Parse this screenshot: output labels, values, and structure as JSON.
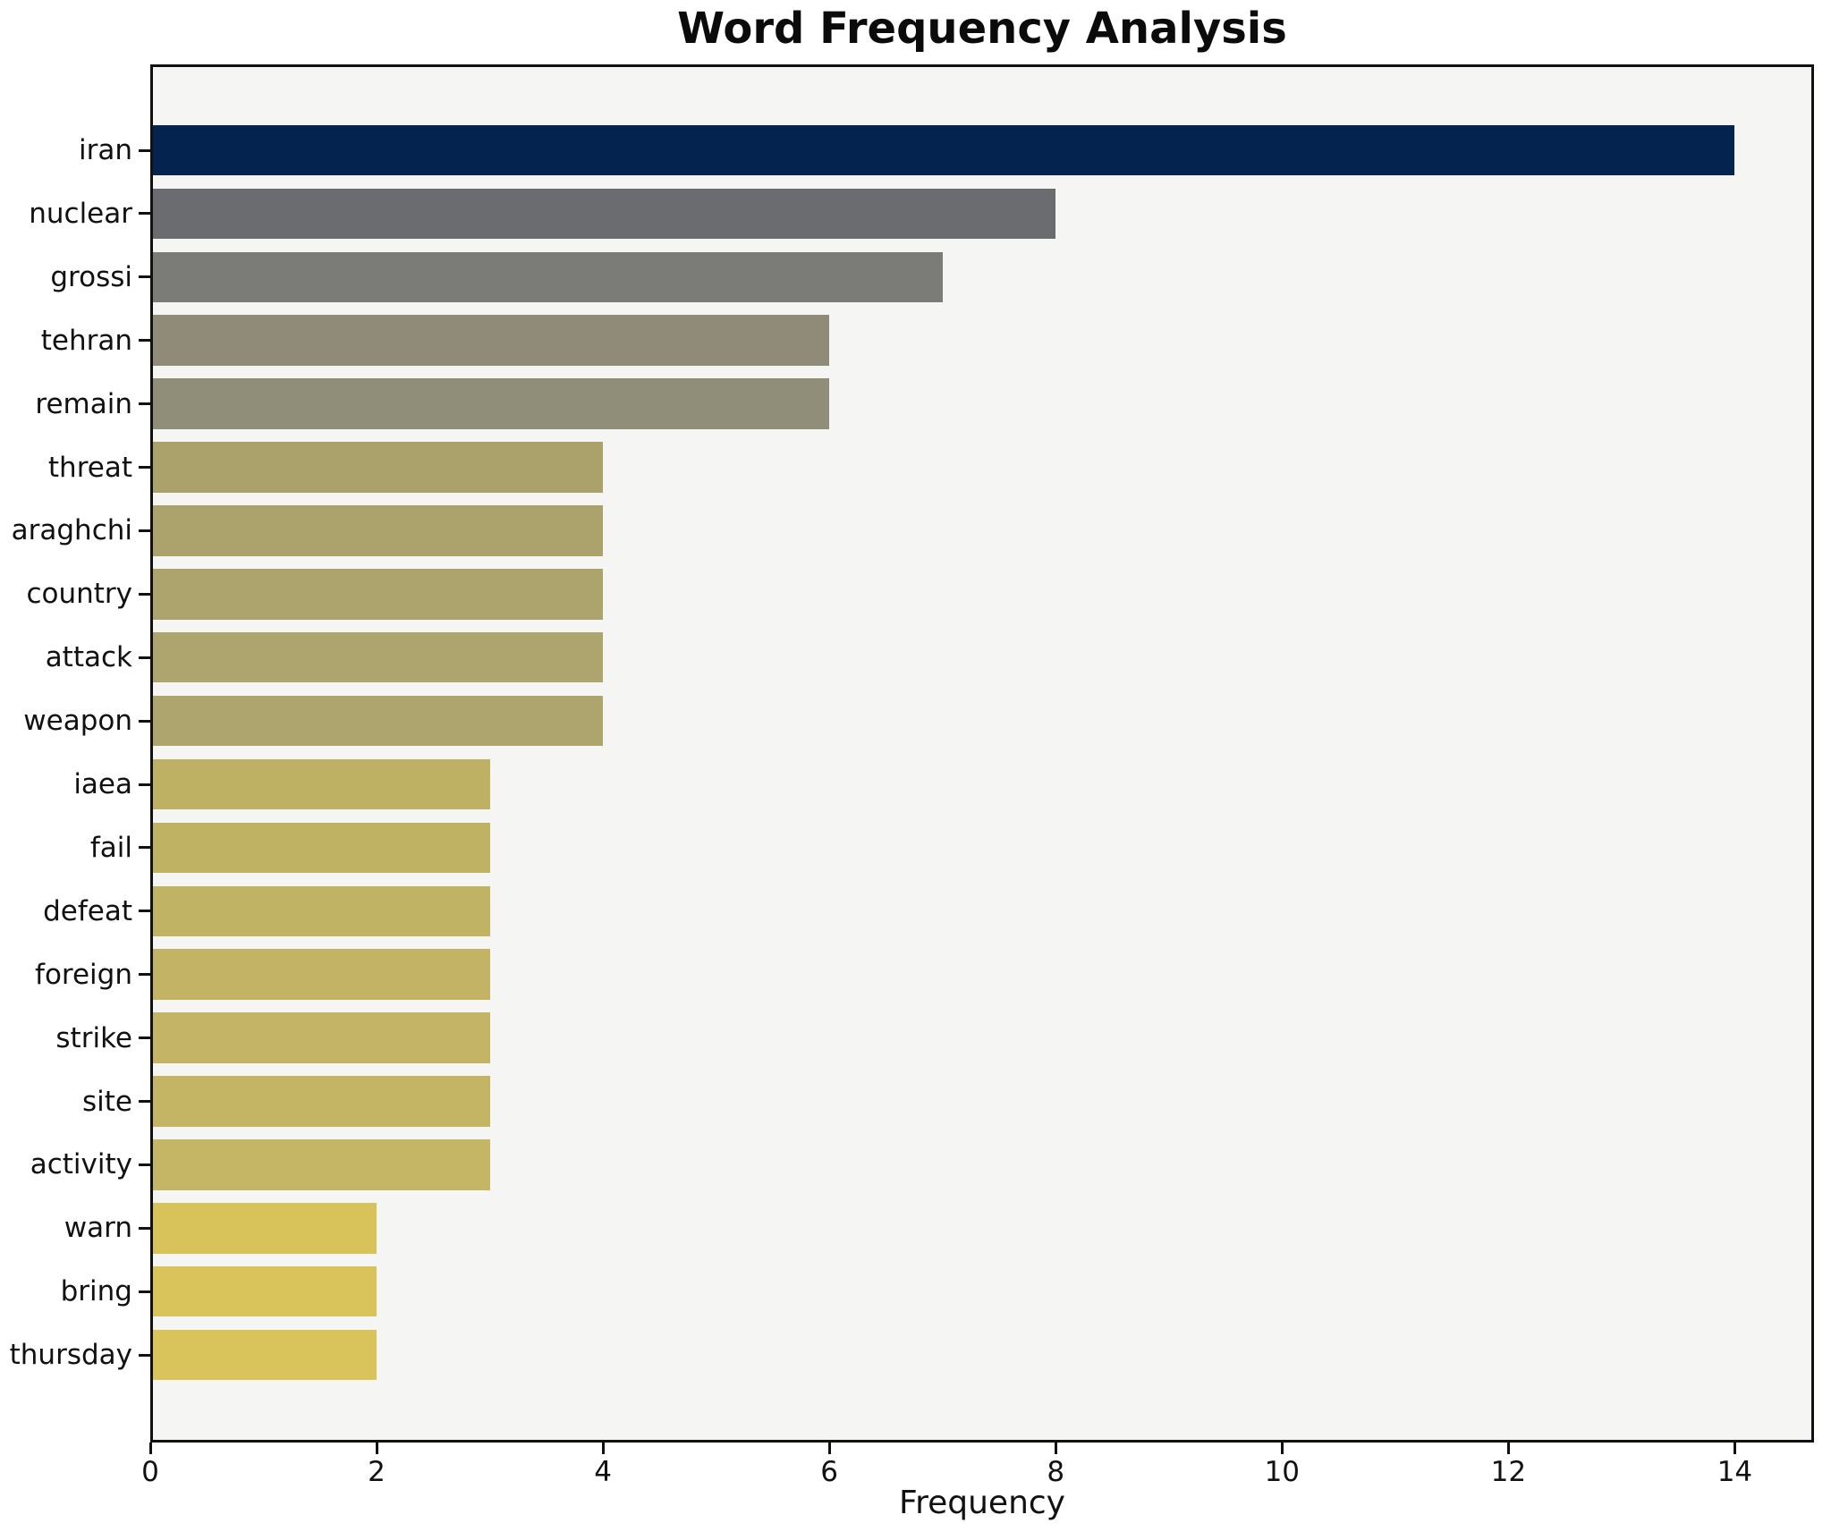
{
  "chart_data": {
    "type": "bar",
    "orientation": "horizontal",
    "title": "Word Frequency Analysis",
    "xlabel": "Frequency",
    "ylabel": "",
    "xlim": [
      0,
      14.7
    ],
    "x_ticks": [
      0,
      2,
      4,
      6,
      8,
      10,
      12,
      14
    ],
    "grid": false,
    "legend": null,
    "figure_background": "#ffffff",
    "plot_background": "#f5f5f3",
    "axis_color": "#111111",
    "text_color": "#111111",
    "categories": [
      "iran",
      "nuclear",
      "grossi",
      "tehran",
      "remain",
      "threat",
      "araghchi",
      "country",
      "attack",
      "weapon",
      "iaea",
      "fail",
      "defeat",
      "foreign",
      "strike",
      "site",
      "activity",
      "warn",
      "bring",
      "thursday"
    ],
    "values": [
      14,
      8,
      7,
      6,
      6,
      4,
      4,
      4,
      4,
      4,
      3,
      3,
      3,
      3,
      3,
      3,
      3,
      2,
      2,
      2
    ],
    "bar_colors": [
      "#04234e",
      "#6b6c70",
      "#7b7c78",
      "#8f8b78",
      "#908d79",
      "#aba26b",
      "#aca26b",
      "#ada36c",
      "#aea46d",
      "#aea46e",
      "#bfb163",
      "#c0b263",
      "#c1b364",
      "#c2b464",
      "#c3b565",
      "#c4b565",
      "#c5b666",
      "#d8c35b",
      "#d9c45c",
      "#d9c45c"
    ]
  }
}
